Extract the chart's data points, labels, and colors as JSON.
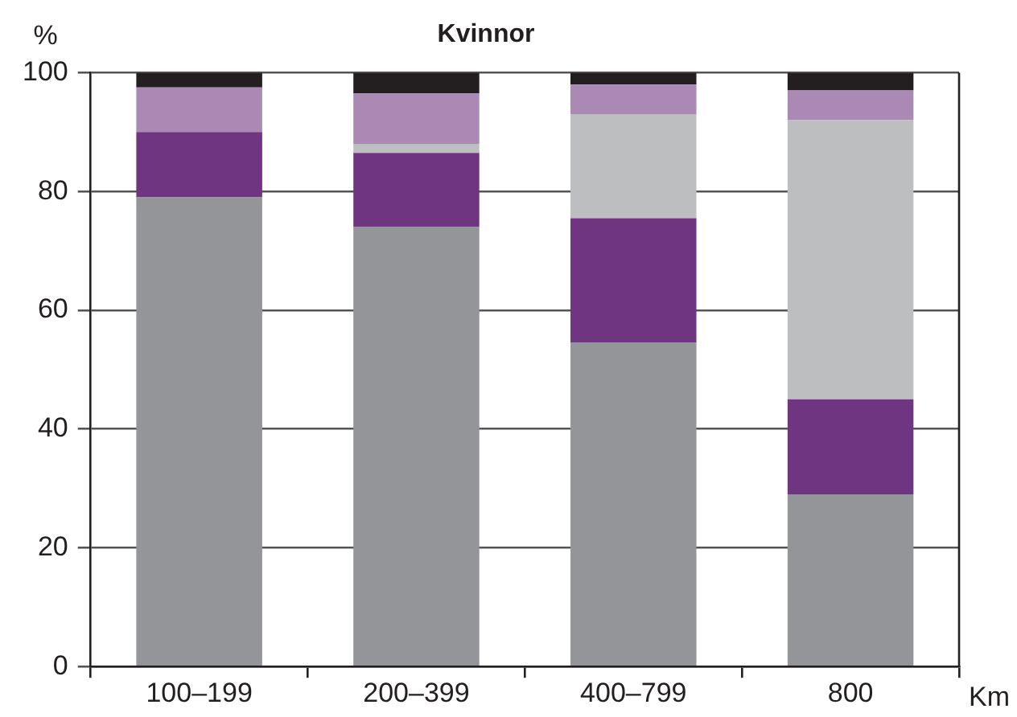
{
  "chart_data": {
    "type": "bar",
    "title": "Kvinnor",
    "ylabel": "%",
    "xlabel": "Km",
    "stacked": true,
    "grid": "y",
    "legend": false,
    "categories": [
      "100–199",
      "200–399",
      "400–799",
      "800"
    ],
    "series": [
      {
        "color": "#939598",
        "values": [
          79,
          74,
          54.5,
          29
        ]
      },
      {
        "color": "#6f3580",
        "values": [
          11,
          12.5,
          21,
          16
        ]
      },
      {
        "color": "#bcbec0",
        "values": [
          0,
          1.5,
          17.5,
          47
        ]
      },
      {
        "color": "#aa8ab4",
        "values": [
          7.5,
          8.5,
          5,
          5
        ]
      },
      {
        "color": "#231f20",
        "values": [
          2.5,
          3.5,
          2,
          3
        ]
      }
    ],
    "ylim": [
      0,
      100
    ],
    "yticks": [
      0,
      20,
      40,
      60,
      80,
      100
    ]
  }
}
